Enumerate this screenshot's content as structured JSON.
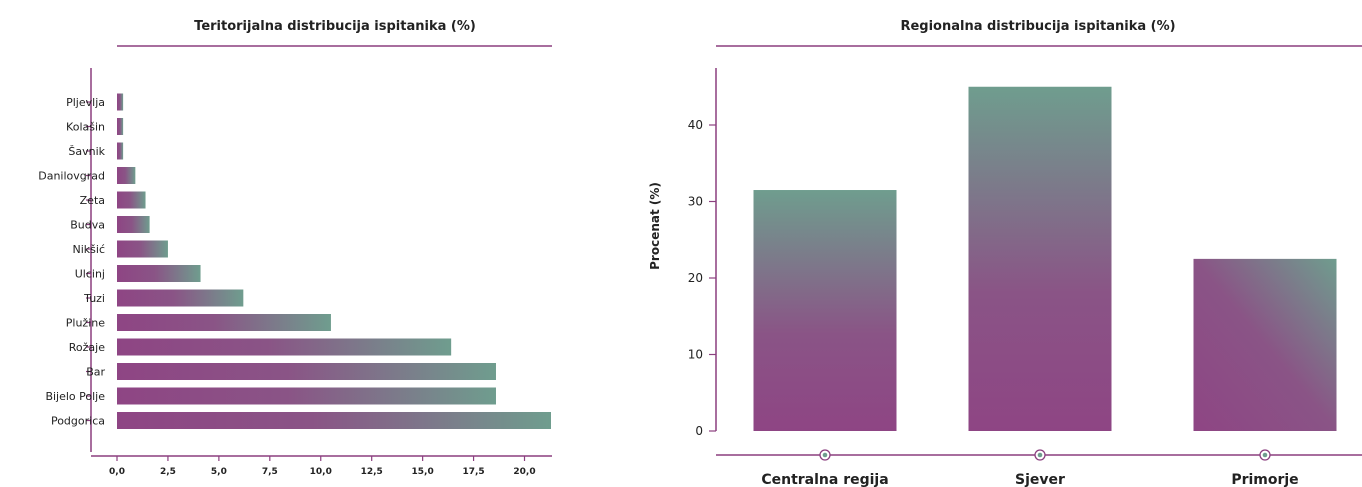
{
  "colors": {
    "accent": "#8b3f7f",
    "bar_start": "#8e4584",
    "bar_end": "#6f9d8e",
    "text": "#222222"
  },
  "chart_data": [
    {
      "type": "bar",
      "orientation": "horizontal",
      "title": "Teritorijalna distribucija ispitanika (%)",
      "categories": [
        "Pljevlja",
        "Kolašin",
        "Šavnik",
        "Danilovgrad",
        "Zeta",
        "Budva",
        "Nikšić",
        "Ulcinj",
        "Tuzi",
        "Plužine",
        "Rožaje",
        "Bar",
        "Bijelo Polje",
        "Podgorica"
      ],
      "values": [
        0.3,
        0.3,
        0.3,
        0.9,
        1.4,
        1.6,
        2.5,
        4.1,
        6.2,
        10.5,
        16.4,
        18.6,
        18.6,
        21.3
      ],
      "xlim": [
        0,
        21.3
      ],
      "xticks": [
        "0,0",
        "2,5",
        "5,0",
        "7,5",
        "10,0",
        "12,5",
        "15,0",
        "17,5",
        "20,0"
      ],
      "xlabel": "",
      "ylabel": ""
    },
    {
      "type": "bar",
      "orientation": "vertical",
      "title": "Regionalna distribucija ispitanika (%)",
      "categories": [
        "Centralna regija",
        "Sjever",
        "Primorje"
      ],
      "values": [
        31.5,
        45.0,
        22.5
      ],
      "ylim": [
        0,
        47
      ],
      "yticks": [
        "0",
        "10",
        "20",
        "30",
        "40"
      ],
      "xlabel": "",
      "ylabel": "Procenat (%)"
    }
  ]
}
